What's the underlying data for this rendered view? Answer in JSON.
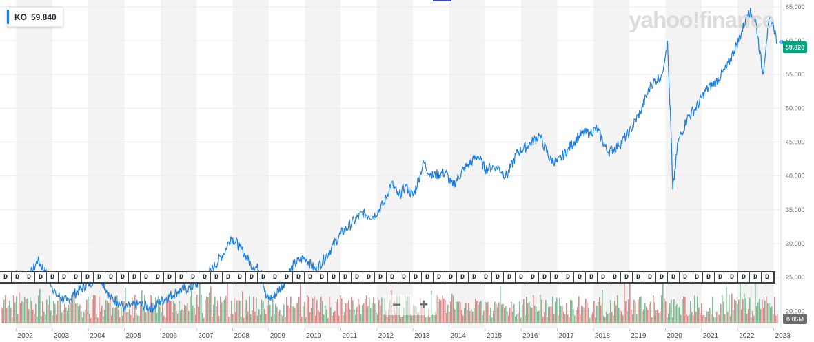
{
  "legend": {
    "symbol": "KO",
    "price": "59.840"
  },
  "watermark": "yahoo!finance",
  "last_price_tag": "59.820",
  "volume_tag": "8.85M",
  "event_flag_label": "D",
  "event_flag_count": 66,
  "zoom": {
    "minus": "−",
    "plus": "+"
  },
  "colors": {
    "line": "#1a7ee6",
    "up_volume": "#45b26b",
    "down_volume": "#f05a5a",
    "band": "#f3f3f3",
    "last_tag": "#00a67e"
  },
  "chart_data": {
    "type": "line",
    "title": "",
    "series": [
      {
        "name": "KO",
        "x": [
          2002.0,
          2002.3,
          2002.6,
          2002.9,
          2003.1,
          2003.4,
          2003.7,
          2004.0,
          2004.3,
          2004.6,
          2004.8,
          2005.0,
          2005.4,
          2005.8,
          2006.0,
          2006.5,
          2006.8,
          2007.0,
          2007.4,
          2007.8,
          2007.95,
          2008.2,
          2008.5,
          2008.8,
          2008.92,
          2009.1,
          2009.4,
          2009.7,
          2010.0,
          2010.3,
          2010.5,
          2010.7,
          2011.0,
          2011.3,
          2011.6,
          2011.9,
          2012.2,
          2012.4,
          2012.6,
          2012.8,
          2013.0,
          2013.3,
          2013.5,
          2013.9,
          2014.1,
          2014.4,
          2014.8,
          2015.0,
          2015.3,
          2015.6,
          2015.9,
          2016.2,
          2016.5,
          2016.8,
          2017.0,
          2017.3,
          2017.6,
          2017.9,
          2018.1,
          2018.4,
          2018.7,
          2019.0,
          2019.3,
          2019.6,
          2019.9,
          2020.05,
          2020.15,
          2020.2,
          2020.35,
          2020.6,
          2020.9,
          2021.1,
          2021.4,
          2021.7,
          2021.9,
          2022.1,
          2022.3,
          2022.5,
          2022.7,
          2022.8,
          2022.9,
          2023.0,
          2023.1
        ],
        "values": [
          26.0,
          24.5,
          27.5,
          25.0,
          22.5,
          21.5,
          23.0,
          24.0,
          25.5,
          22.0,
          21.5,
          20.5,
          21.0,
          20.5,
          21.5,
          23.0,
          23.5,
          24.0,
          26.0,
          29.0,
          31.0,
          29.5,
          27.0,
          26.0,
          22.0,
          22.0,
          24.0,
          27.0,
          28.0,
          26.0,
          27.5,
          29.0,
          31.5,
          33.0,
          34.5,
          34.0,
          36.0,
          39.0,
          37.0,
          38.5,
          37.0,
          42.0,
          40.0,
          40.5,
          38.5,
          41.0,
          43.0,
          41.0,
          41.5,
          40.0,
          43.5,
          44.5,
          46.0,
          42.5,
          42.0,
          44.0,
          46.0,
          46.5,
          47.0,
          43.5,
          44.5,
          46.5,
          49.5,
          53.5,
          55.0,
          60.0,
          47.0,
          38.0,
          45.0,
          48.5,
          50.5,
          52.5,
          54.0,
          56.0,
          58.5,
          61.0,
          64.5,
          63.0,
          55.0,
          60.0,
          63.5,
          62.0,
          59.8
        ]
      }
    ],
    "xticks": [
      "2002",
      "2003",
      "2004",
      "2005",
      "2006",
      "2007",
      "2008",
      "2009",
      "2010",
      "2011",
      "2012",
      "2013",
      "2014",
      "2015",
      "2016",
      "2017",
      "2018",
      "2019",
      "2020",
      "2021",
      "2022",
      "2023"
    ],
    "yticks": [
      "20.000",
      "25.000",
      "30.000",
      "35.000",
      "40.000",
      "45.000",
      "50.000",
      "55.000",
      "60.000",
      "65.000"
    ],
    "xlim": [
      2001.55,
      2023.2
    ],
    "ylim": [
      17.5,
      66.0
    ],
    "grid": true,
    "legend_position": "top-left"
  }
}
